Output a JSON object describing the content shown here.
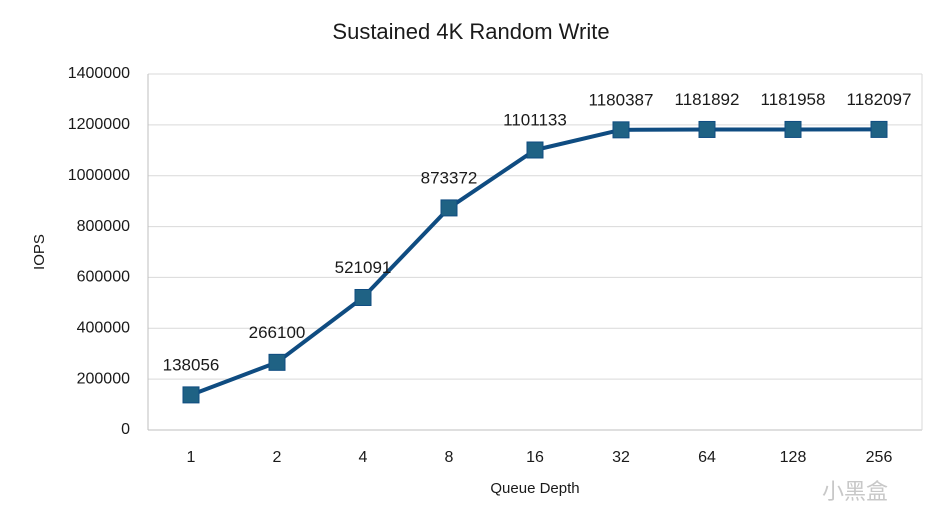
{
  "chart_data": {
    "type": "line",
    "title": "Sustained 4K Random Write",
    "x_label": "Queue Depth",
    "y_label": "IOPS",
    "categories": [
      "1",
      "2",
      "4",
      "8",
      "16",
      "32",
      "64",
      "128",
      "256"
    ],
    "series": [
      {
        "name": "IOPS",
        "color": "#0f4c81",
        "marker_color": "#1f6284",
        "values": [
          138056,
          266100,
          521091,
          873372,
          1101133,
          1180387,
          1181892,
          1181958,
          1182097
        ]
      }
    ],
    "ylim": [
      0,
      1400000
    ],
    "yticks": [
      0,
      200000,
      400000,
      600000,
      800000,
      1000000,
      1200000,
      1400000
    ],
    "grid": true,
    "legend": false,
    "watermark": "小黑盒"
  }
}
